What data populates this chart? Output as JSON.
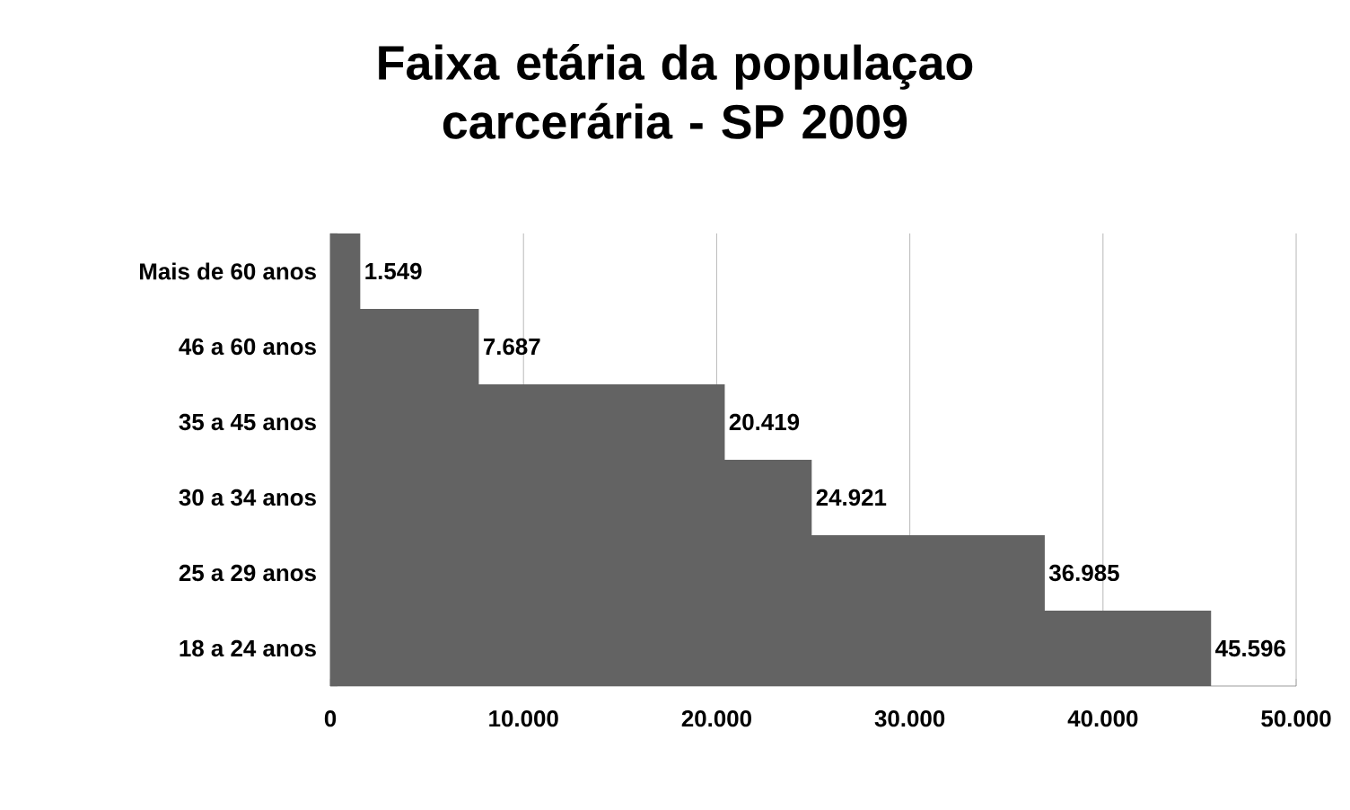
{
  "chart_data": {
    "type": "bar",
    "orientation": "horizontal",
    "title": "Faixa etária da populaçao carcerária - SP 2009",
    "categories": [
      "Mais de 60 anos",
      "46 a 60 anos",
      "35 a 45 anos",
      "30 a 34 anos",
      "25 a 29 anos",
      "18 a 24 anos"
    ],
    "values": [
      1549,
      7687,
      20419,
      24921,
      36985,
      45596
    ],
    "value_labels": [
      "1.549",
      "7.687",
      "20.419",
      "24.921",
      "36.985",
      "45.596"
    ],
    "color": "#636363",
    "xlim": [
      0,
      50000
    ],
    "xticks": [
      0,
      {
        "value": 10000,
        "label": "10.000"
      },
      {
        "value": 20000,
        "label": "20.000"
      },
      {
        "value": 30000,
        "label": "30.000"
      },
      {
        "value": 40000,
        "label": "40.000"
      },
      {
        "value": 50000,
        "label": "50.000"
      }
    ],
    "grid": "x"
  }
}
